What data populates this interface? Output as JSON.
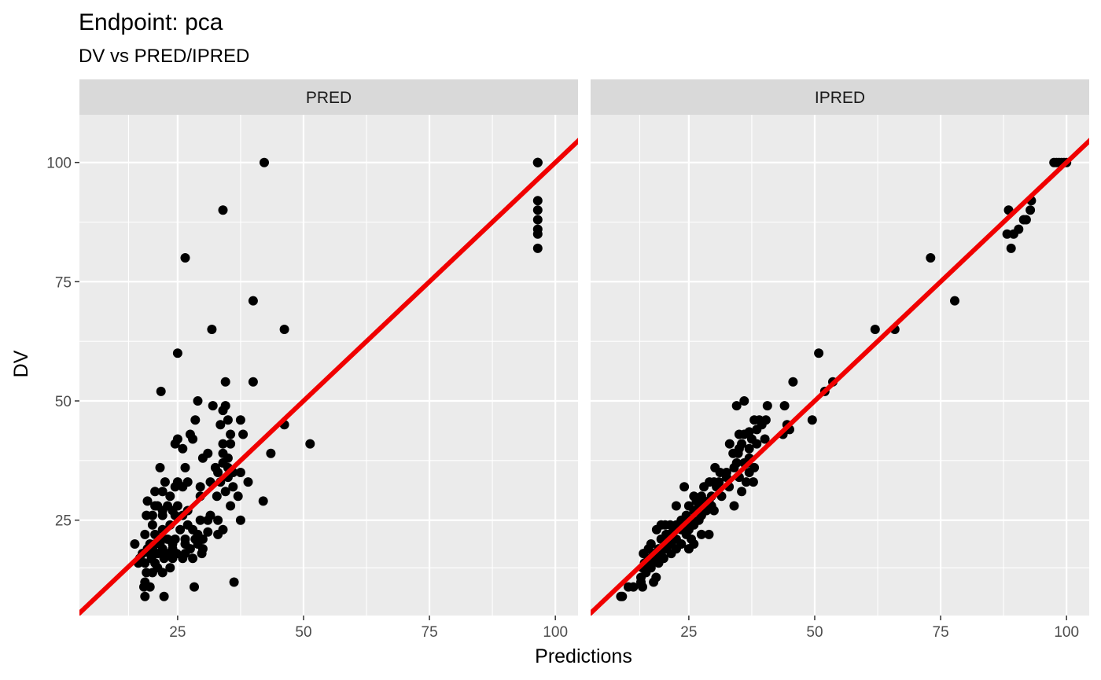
{
  "chart_data": {
    "type": "scatter",
    "title": "Endpoint:  pca",
    "subtitle": "DV vs PRED/IPRED",
    "xlabel": "Predictions",
    "ylabel": "DV",
    "xlim": [
      5.5,
      104.5
    ],
    "ylim": [
      5,
      110
    ],
    "x_ticks": [
      25,
      50,
      75,
      100
    ],
    "y_ticks": [
      25,
      50,
      75,
      100
    ],
    "x_tick_labels": [
      "25",
      "50",
      "75",
      "100"
    ],
    "y_tick_labels": [
      "25",
      "50",
      "75",
      "100"
    ],
    "grid": true,
    "reference_line": {
      "slope": 1,
      "intercept": 0,
      "color": "#f00000"
    },
    "point_color": "#000000",
    "panel_background": "#ebebeb",
    "strip_background": "#d9d9d9",
    "panels": [
      {
        "strip": "PRED",
        "points": [
          [
            42.2,
            100
          ],
          [
            34,
            90
          ],
          [
            26.5,
            80
          ],
          [
            40,
            71
          ],
          [
            31.8,
            65
          ],
          [
            46.2,
            65
          ],
          [
            25,
            60
          ],
          [
            34.5,
            54
          ],
          [
            40,
            54
          ],
          [
            21.7,
            52
          ],
          [
            29,
            50
          ],
          [
            34.5,
            49
          ],
          [
            32,
            49
          ],
          [
            34,
            48
          ],
          [
            28.5,
            46
          ],
          [
            35,
            46
          ],
          [
            37.5,
            46
          ],
          [
            33.5,
            45
          ],
          [
            46.2,
            45
          ],
          [
            51.3,
            41
          ],
          [
            38,
            43
          ],
          [
            35.5,
            43
          ],
          [
            27.5,
            43
          ],
          [
            25,
            42
          ],
          [
            24.5,
            41
          ],
          [
            28,
            42
          ],
          [
            34,
            41
          ],
          [
            35.5,
            41
          ],
          [
            26,
            40
          ],
          [
            43.5,
            39
          ],
          [
            31,
            39
          ],
          [
            30,
            38
          ],
          [
            34,
            39
          ],
          [
            35,
            38
          ],
          [
            26.5,
            36
          ],
          [
            21.5,
            36
          ],
          [
            34,
            37
          ],
          [
            35,
            36
          ],
          [
            32.5,
            36
          ],
          [
            33,
            35
          ],
          [
            36,
            35
          ],
          [
            37.5,
            35
          ],
          [
            35,
            34
          ],
          [
            31.5,
            33
          ],
          [
            25,
            33
          ],
          [
            26,
            32
          ],
          [
            24.5,
            32
          ],
          [
            22.5,
            33
          ],
          [
            27,
            33
          ],
          [
            33.5,
            33
          ],
          [
            29.5,
            32
          ],
          [
            36,
            32
          ],
          [
            39,
            33
          ],
          [
            34.5,
            31
          ],
          [
            37,
            30
          ],
          [
            42,
            29
          ],
          [
            32.8,
            30
          ],
          [
            22,
            31
          ],
          [
            20.5,
            31
          ],
          [
            23.5,
            30
          ],
          [
            29.5,
            30
          ],
          [
            35.5,
            28
          ],
          [
            19,
            29
          ],
          [
            21,
            28
          ],
          [
            20.5,
            28
          ],
          [
            23,
            28
          ],
          [
            25,
            28
          ],
          [
            22,
            27
          ],
          [
            27,
            27
          ],
          [
            24,
            27
          ],
          [
            31.5,
            26
          ],
          [
            18.8,
            26
          ],
          [
            20,
            26
          ],
          [
            22,
            26
          ],
          [
            24.5,
            26
          ],
          [
            26,
            26
          ],
          [
            33,
            25
          ],
          [
            37.5,
            25
          ],
          [
            29.5,
            25
          ],
          [
            31,
            25
          ],
          [
            20,
            24
          ],
          [
            23.5,
            24
          ],
          [
            27,
            24
          ],
          [
            22,
            23
          ],
          [
            18.5,
            22
          ],
          [
            20.5,
            22
          ],
          [
            25.5,
            23
          ],
          [
            28,
            23
          ],
          [
            29,
            22
          ],
          [
            31,
            22.5
          ],
          [
            33,
            22
          ],
          [
            34,
            23
          ],
          [
            21.5,
            21
          ],
          [
            23,
            21
          ],
          [
            24.5,
            21
          ],
          [
            26.5,
            21
          ],
          [
            28.5,
            21
          ],
          [
            30,
            21
          ],
          [
            16.5,
            20
          ],
          [
            19.5,
            20
          ],
          [
            21.5,
            20
          ],
          [
            24,
            20
          ],
          [
            26.5,
            20
          ],
          [
            29,
            20
          ],
          [
            20,
            19
          ],
          [
            22,
            19
          ],
          [
            24,
            19
          ],
          [
            27.5,
            19
          ],
          [
            30,
            19
          ],
          [
            18,
            18
          ],
          [
            19.5,
            18
          ],
          [
            21.8,
            18
          ],
          [
            23.2,
            18
          ],
          [
            24.8,
            18
          ],
          [
            26.5,
            18
          ],
          [
            29.8,
            18
          ],
          [
            17.5,
            17
          ],
          [
            19.8,
            17
          ],
          [
            22.3,
            17
          ],
          [
            24,
            17
          ],
          [
            26,
            17
          ],
          [
            28,
            17
          ],
          [
            18.5,
            16
          ],
          [
            20.5,
            16
          ],
          [
            17.2,
            16
          ],
          [
            21,
            15
          ],
          [
            23.5,
            15
          ],
          [
            18.8,
            14
          ],
          [
            20,
            14
          ],
          [
            22,
            14
          ],
          [
            18.5,
            12
          ],
          [
            36.2,
            12
          ],
          [
            18.3,
            11
          ],
          [
            19.5,
            11
          ],
          [
            28.3,
            11
          ],
          [
            18.5,
            9
          ],
          [
            22.3,
            9
          ],
          [
            20.5,
            20
          ],
          [
            19,
            19
          ],
          [
            21,
            18
          ],
          [
            96.5,
            100
          ],
          [
            96.5,
            100
          ],
          [
            96.5,
            100
          ],
          [
            96.5,
            92
          ],
          [
            96.5,
            90
          ],
          [
            96.5,
            88
          ],
          [
            96.5,
            86
          ],
          [
            96.5,
            85
          ],
          [
            96.5,
            82
          ]
        ]
      },
      {
        "strip": "IPRED",
        "points": [
          [
            97.5,
            100
          ],
          [
            98,
            100
          ],
          [
            98.5,
            100
          ],
          [
            99,
            100
          ],
          [
            99.5,
            100
          ],
          [
            100,
            100
          ],
          [
            93,
            92
          ],
          [
            88.5,
            90
          ],
          [
            92.8,
            90
          ],
          [
            92,
            88
          ],
          [
            91.5,
            88
          ],
          [
            90.5,
            86
          ],
          [
            88.2,
            85
          ],
          [
            89.5,
            85
          ],
          [
            89,
            82
          ],
          [
            73,
            80
          ],
          [
            77.8,
            71
          ],
          [
            62,
            65
          ],
          [
            65.9,
            65
          ],
          [
            50.8,
            60
          ],
          [
            45.7,
            54
          ],
          [
            53.6,
            54
          ],
          [
            52,
            52
          ],
          [
            36,
            50
          ],
          [
            40.6,
            49
          ],
          [
            44,
            49
          ],
          [
            34.5,
            49
          ],
          [
            38,
            46
          ],
          [
            39,
            46
          ],
          [
            40.3,
            46
          ],
          [
            49.5,
            46
          ],
          [
            39.5,
            45
          ],
          [
            44.5,
            45
          ],
          [
            38.5,
            44
          ],
          [
            45,
            44
          ],
          [
            37,
            43.5
          ],
          [
            35,
            43
          ],
          [
            36,
            43
          ],
          [
            43.7,
            43
          ],
          [
            37.5,
            42
          ],
          [
            40.1,
            42
          ],
          [
            35.5,
            41
          ],
          [
            38.5,
            41
          ],
          [
            33.1,
            41
          ],
          [
            35,
            40
          ],
          [
            37,
            40
          ],
          [
            33.8,
            39
          ],
          [
            34.8,
            39
          ],
          [
            37,
            38
          ],
          [
            36.7,
            37
          ],
          [
            36,
            37
          ],
          [
            34.5,
            37
          ],
          [
            38,
            36
          ],
          [
            30.2,
            36
          ],
          [
            34,
            36
          ],
          [
            37,
            35
          ],
          [
            31.2,
            35
          ],
          [
            32.5,
            35
          ],
          [
            35,
            34
          ],
          [
            32.5,
            34
          ],
          [
            36.4,
            33
          ],
          [
            30,
            33
          ],
          [
            31,
            33
          ],
          [
            29.1,
            33
          ],
          [
            37.8,
            33
          ],
          [
            33,
            32
          ],
          [
            24.1,
            32
          ],
          [
            28,
            32
          ],
          [
            30.5,
            32
          ],
          [
            35.5,
            31
          ],
          [
            26,
            30
          ],
          [
            27.5,
            30
          ],
          [
            29.5,
            30
          ],
          [
            31.5,
            30
          ],
          [
            28,
            29
          ],
          [
            29,
            29
          ],
          [
            26.5,
            29
          ],
          [
            25,
            28
          ],
          [
            27,
            28
          ],
          [
            22.5,
            28
          ],
          [
            29.5,
            28
          ],
          [
            34,
            28
          ],
          [
            26,
            27
          ],
          [
            28.5,
            27
          ],
          [
            30,
            27
          ],
          [
            24.5,
            26
          ],
          [
            27.5,
            26
          ],
          [
            23.5,
            25
          ],
          [
            25.5,
            25
          ],
          [
            27,
            25
          ],
          [
            22.5,
            24
          ],
          [
            24.5,
            24
          ],
          [
            26,
            24
          ],
          [
            19.5,
            24
          ],
          [
            20.3,
            24
          ],
          [
            21.3,
            24
          ],
          [
            22,
            23
          ],
          [
            23.5,
            23
          ],
          [
            25,
            23
          ],
          [
            18.6,
            23
          ],
          [
            21,
            22
          ],
          [
            24.5,
            22
          ],
          [
            27.5,
            22
          ],
          [
            29,
            22
          ],
          [
            20.5,
            21
          ],
          [
            22.5,
            21
          ],
          [
            25.5,
            21
          ],
          [
            19.5,
            21
          ],
          [
            21.5,
            20
          ],
          [
            23.5,
            20
          ],
          [
            26,
            20
          ],
          [
            17.5,
            20
          ],
          [
            19,
            19
          ],
          [
            20.5,
            19
          ],
          [
            22.5,
            19
          ],
          [
            25,
            19
          ],
          [
            17,
            19
          ],
          [
            18,
            18
          ],
          [
            19.5,
            18
          ],
          [
            21.5,
            18
          ],
          [
            16,
            18
          ],
          [
            17,
            17
          ],
          [
            18.5,
            17
          ],
          [
            20,
            17
          ],
          [
            16.2,
            16
          ],
          [
            17.5,
            16
          ],
          [
            19,
            16
          ],
          [
            15.8,
            15
          ],
          [
            17.5,
            15
          ],
          [
            16.5,
            14
          ],
          [
            15.5,
            13
          ],
          [
            18.5,
            13
          ],
          [
            15.5,
            12
          ],
          [
            18,
            12
          ],
          [
            13,
            11
          ],
          [
            14,
            11
          ],
          [
            15.8,
            11
          ],
          [
            11.5,
            9
          ],
          [
            11.8,
            9
          ],
          [
            20.5,
            22
          ]
        ]
      }
    ]
  }
}
